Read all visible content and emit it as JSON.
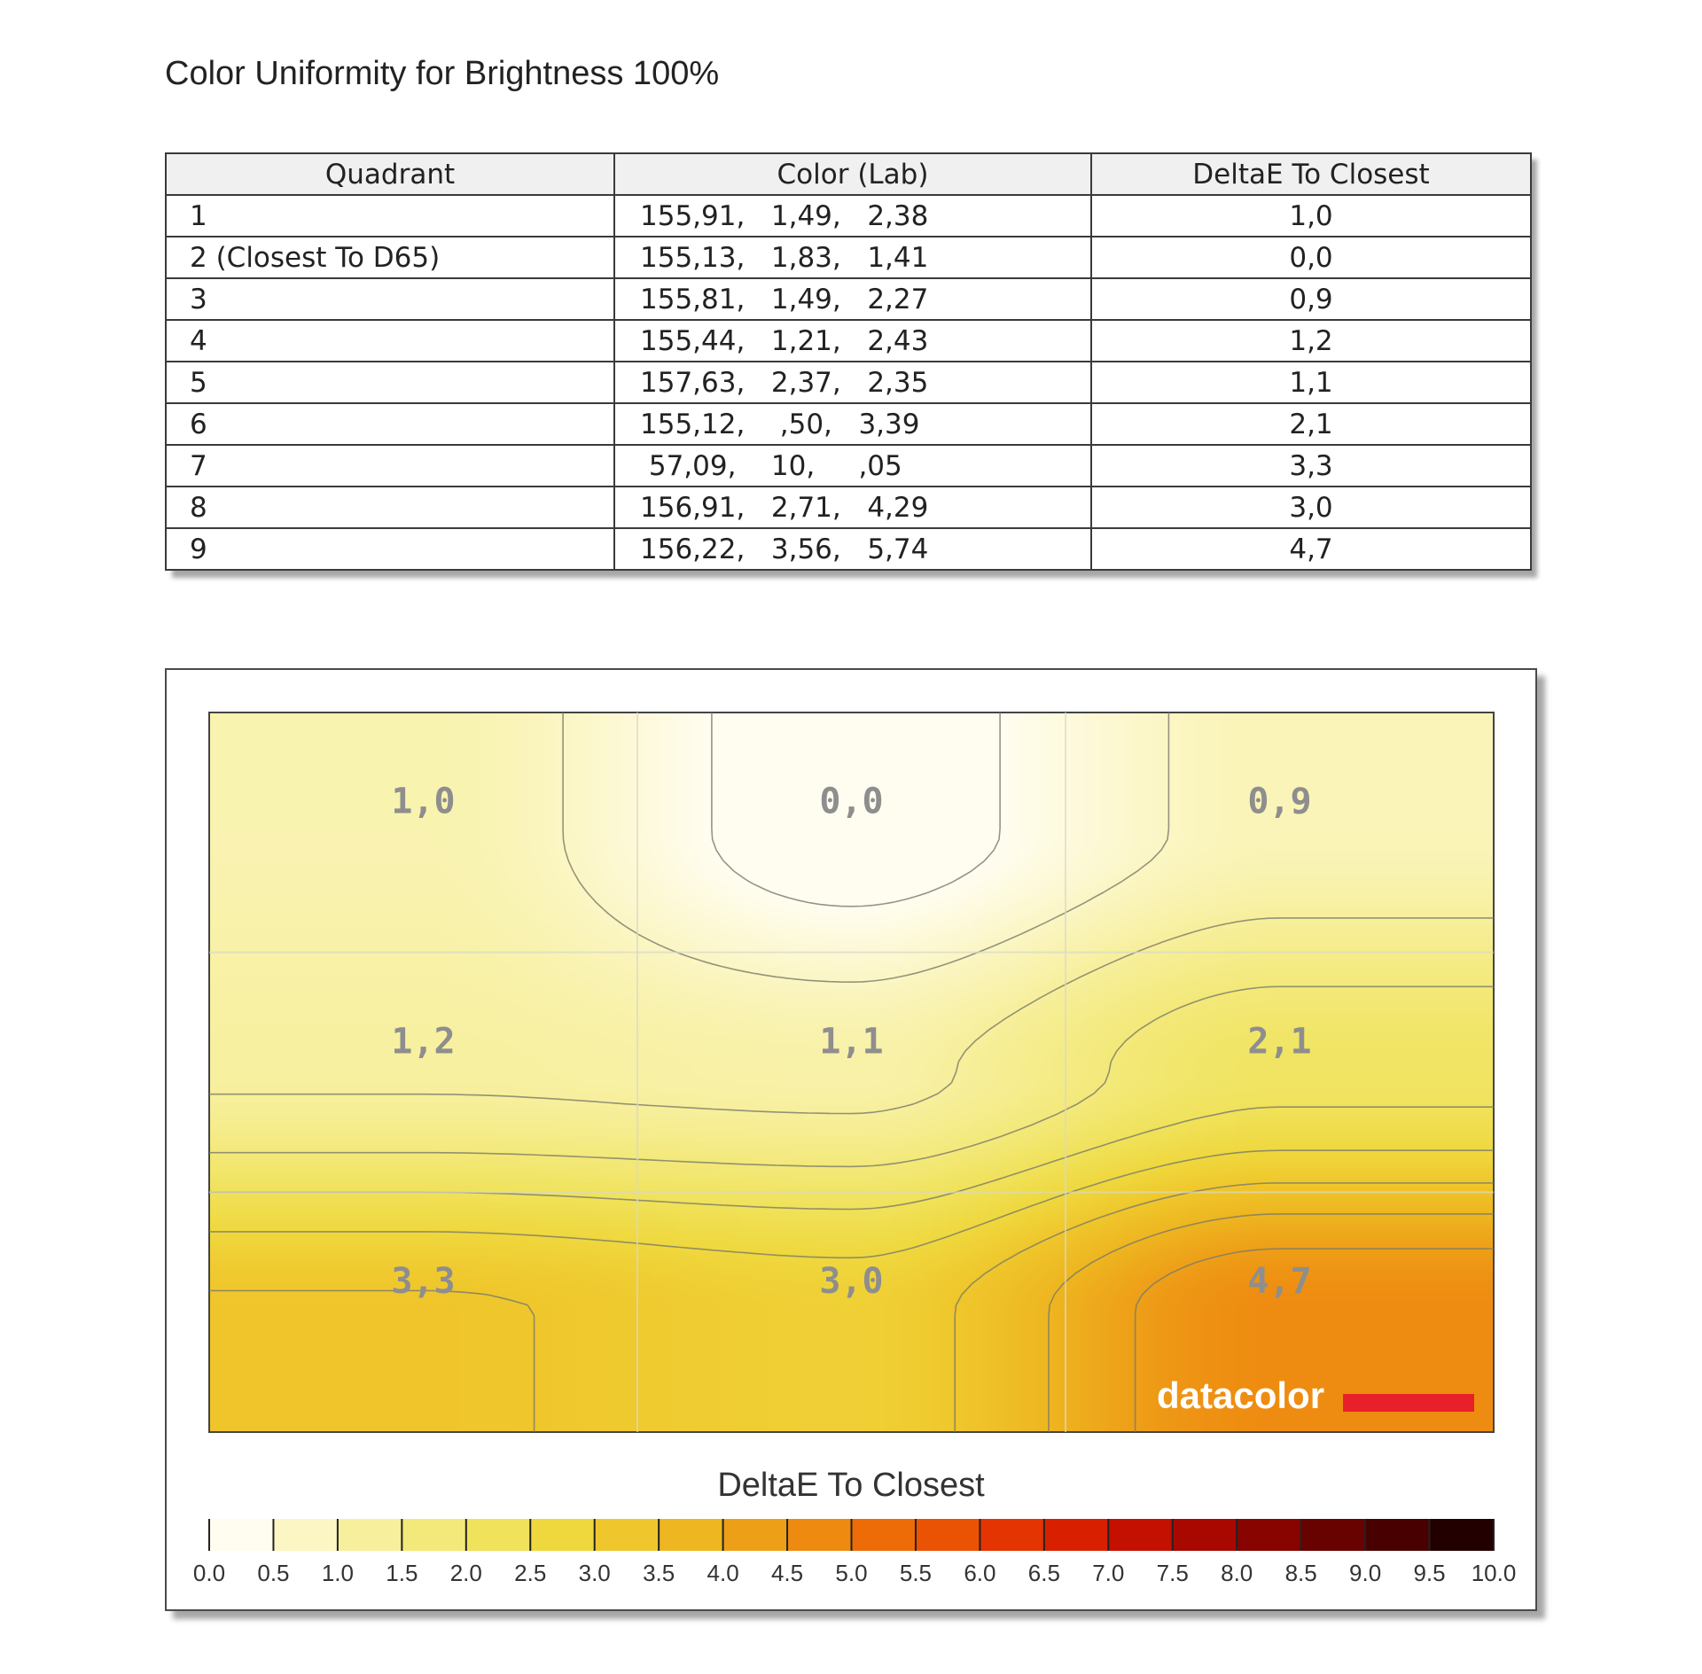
{
  "page": {
    "title": "Color Uniformity for Brightness 100%"
  },
  "table": {
    "headers": [
      "Quadrant",
      "Color (Lab)",
      "DeltaE To Closest"
    ],
    "rows": [
      {
        "quadrant": "1",
        "lab": "155,91,   1,49,   2,38",
        "delta": "1,0"
      },
      {
        "quadrant": "2 (Closest To D65)",
        "lab": "155,13,   1,83,   1,41",
        "delta": "0,0"
      },
      {
        "quadrant": "3",
        "lab": "155,81,   1,49,   2,27",
        "delta": "0,9"
      },
      {
        "quadrant": "4",
        "lab": "155,44,   1,21,   2,43",
        "delta": "1,2"
      },
      {
        "quadrant": "5",
        "lab": "157,63,   2,37,   2,35",
        "delta": "1,1"
      },
      {
        "quadrant": "6",
        "lab": "155,12,    ,50,   3,39",
        "delta": "2,1"
      },
      {
        "quadrant": "7",
        "lab": " 57,09,    10,     ,05",
        "delta": "3,3"
      },
      {
        "quadrant": "8",
        "lab": "156,91,   2,71,   4,29",
        "delta": "3,0"
      },
      {
        "quadrant": "9",
        "lab": "156,22,   3,56,   5,74",
        "delta": "4,7"
      }
    ]
  },
  "chart_data": {
    "type": "heatmap",
    "title": "",
    "legend_title": "DeltaE To Closest",
    "grid": {
      "rows": 3,
      "cols": 3,
      "gridlines": true
    },
    "values": [
      [
        1.0,
        0.0,
        0.9
      ],
      [
        1.2,
        1.1,
        2.1
      ],
      [
        3.3,
        3.0,
        4.7
      ]
    ],
    "cell_labels": [
      [
        "1,0",
        "0,0",
        "0,9"
      ],
      [
        "1,2",
        "1,1",
        "2,1"
      ],
      [
        "3,3",
        "3,0",
        "4,7"
      ]
    ],
    "contours": true,
    "scale": {
      "min": 0.0,
      "max": 10.0,
      "ticks": [
        "0.0",
        "0.5",
        "1.0",
        "1.5",
        "2.0",
        "2.5",
        "3.0",
        "3.5",
        "4.0",
        "4.5",
        "5.0",
        "5.5",
        "6.0",
        "6.5",
        "7.0",
        "7.5",
        "8.0",
        "8.5",
        "9.0",
        "9.5",
        "10.0"
      ],
      "colors": [
        "#fffdf0",
        "#fbf6c4",
        "#f7ef9c",
        "#f3e97a",
        "#f0e25a",
        "#efd83e",
        "#efc72c",
        "#eeb620",
        "#ee9f18",
        "#ee8a10",
        "#ee6c08",
        "#ea5204",
        "#e43402",
        "#d82000",
        "#c41000",
        "#a80800",
        "#880400",
        "#680200",
        "#480000",
        "#220000"
      ],
      "colorbar_ticks": "inside"
    },
    "brand": "datacolor"
  }
}
